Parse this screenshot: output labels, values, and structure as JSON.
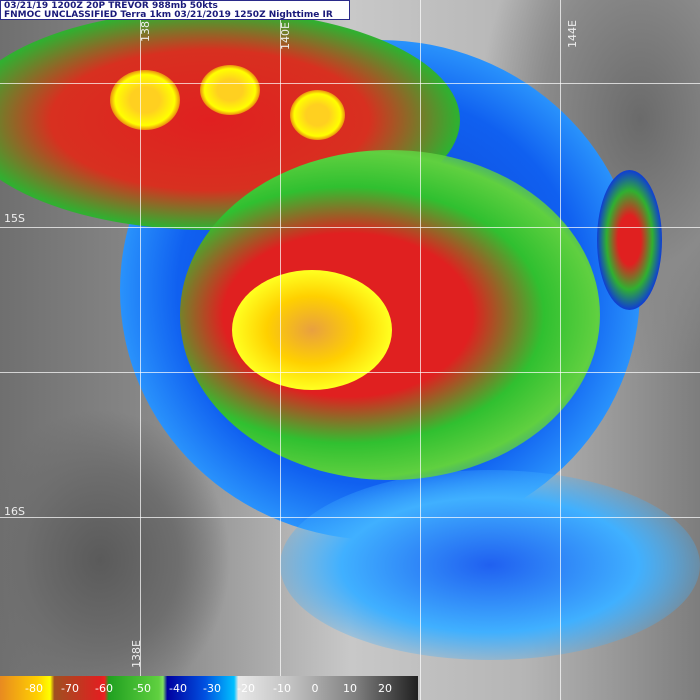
{
  "header": {
    "line1": "03/21/19 1200Z 20P TREVOR 988mb 50kts",
    "line2": "FNMOC UNCLASSIFIED Terra 1km 03/21/2019 1250Z Nighttime IR"
  },
  "grid_labels": {
    "lon_138": "138E",
    "lon_140": "140E",
    "lon_144": "144E",
    "lat_15": "15S",
    "lat_16": "16S",
    "lon_bottom": "138E"
  },
  "colorbar": {
    "labels": [
      "-80",
      "-70",
      "-60",
      "-50",
      "-40",
      "-30",
      "-20",
      "-10",
      "0",
      "10",
      "20"
    ],
    "colors": {
      "coldest": "#ffff00",
      "very_cold": "#e02020",
      "cold": "#30b030",
      "moderate": "#0030c0",
      "cool": "#00c0ff",
      "warm": "#808080"
    }
  }
}
